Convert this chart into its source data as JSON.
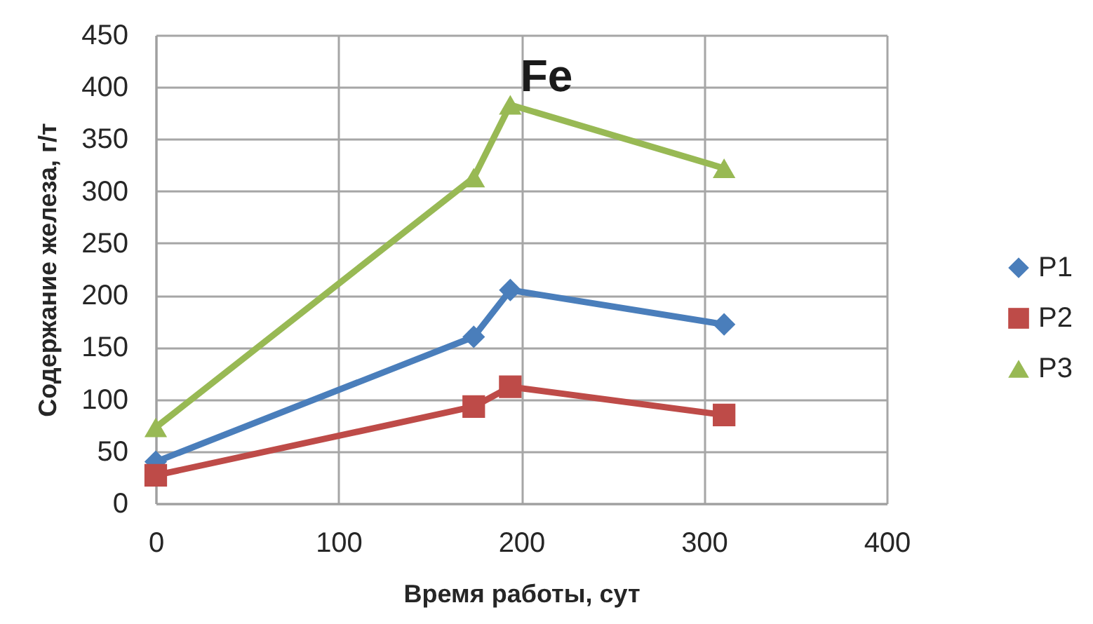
{
  "chart_data": {
    "type": "line",
    "title": "Fe",
    "xlabel": "Время работы, сут",
    "ylabel": "Содержание железа, г/т",
    "x": [
      0,
      174,
      194,
      311
    ],
    "xlim": [
      0,
      400
    ],
    "xticks": [
      0,
      100,
      200,
      300,
      400
    ],
    "ylim": [
      0,
      450
    ],
    "yticks": [
      0,
      50,
      100,
      150,
      200,
      250,
      300,
      350,
      400,
      450
    ],
    "grid": true,
    "legend": "right",
    "line_style": "solid",
    "series": [
      {
        "name": "P1",
        "color": "#4a7ebb",
        "marker": "diamond",
        "values": [
          40,
          160,
          205,
          172
        ]
      },
      {
        "name": "P2",
        "color": "#be4b48",
        "marker": "square",
        "values": [
          27,
          93,
          112,
          85
        ]
      },
      {
        "name": "P3",
        "color": "#98b954",
        "marker": "triangle",
        "values": [
          73,
          313,
          383,
          322
        ]
      }
    ]
  }
}
